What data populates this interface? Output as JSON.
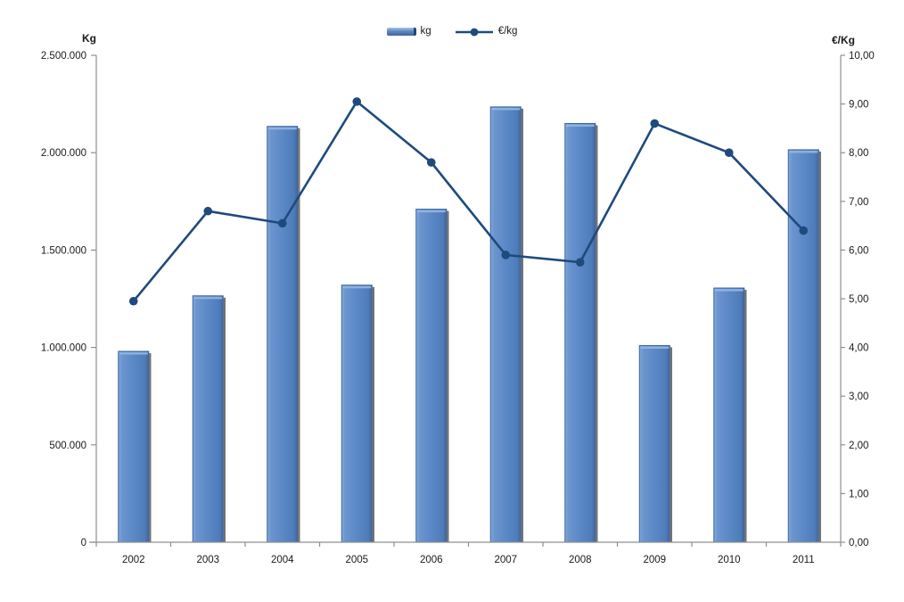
{
  "chart_data": {
    "type": "combo",
    "title": "",
    "categories": [
      "2002",
      "2003",
      "2004",
      "2005",
      "2006",
      "2007",
      "2008",
      "2009",
      "2010",
      "2011"
    ],
    "series": [
      {
        "name": "kg",
        "type": "bar",
        "axis": "left",
        "values": [
          980000,
          1265000,
          2135000,
          1320000,
          1710000,
          2235000,
          2150000,
          1010000,
          1305000,
          2015000
        ]
      },
      {
        "name": "€/kg",
        "type": "line",
        "axis": "right",
        "values": [
          4.95,
          6.8,
          6.55,
          9.05,
          7.8,
          5.9,
          5.75,
          8.6,
          8.0,
          6.4
        ]
      }
    ],
    "left_axis": {
      "title": "Kg",
      "min": 0,
      "max": 2500000,
      "tick_labels": [
        "0",
        "500.000",
        "1.000.000",
        "1.500.000",
        "2.000.000",
        "2.500.000"
      ]
    },
    "right_axis": {
      "title": "€/Kg",
      "min": 0,
      "max": 10,
      "tick_labels": [
        "0,00",
        "1,00",
        "2,00",
        "3,00",
        "4,00",
        "5,00",
        "6,00",
        "7,00",
        "8,00",
        "9,00",
        "10,00"
      ]
    },
    "legend_position": "top",
    "grid": false,
    "colors": {
      "bar": "#5b88c6",
      "bar_edge": "#3a639d",
      "bar_highlight": "#93b5e0",
      "bar_shadow": "#404040",
      "line": "#1f4a7d",
      "axis": "#8f8f8f",
      "text": "#1a1a1a"
    }
  }
}
